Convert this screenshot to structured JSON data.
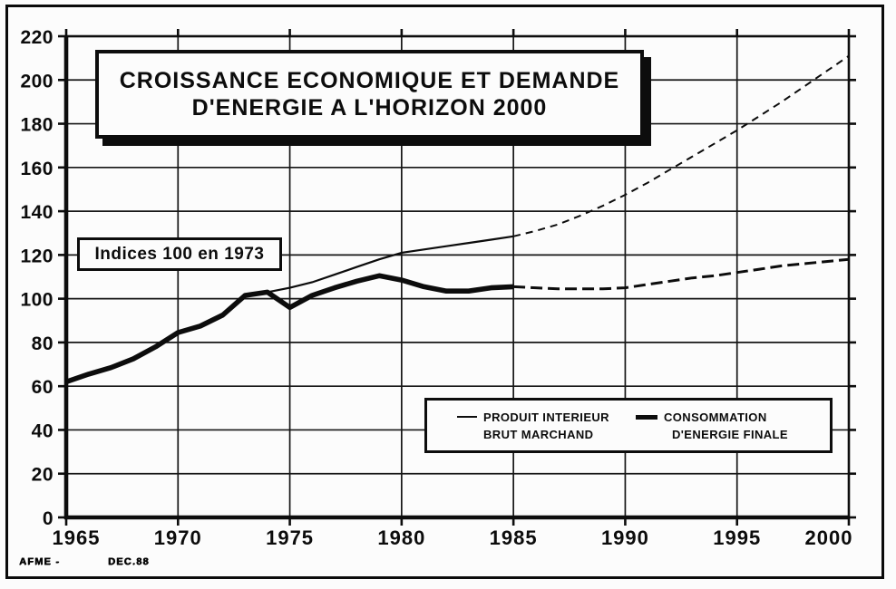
{
  "colors": {
    "ink": "#0c0c0c",
    "paper": "#fcfcfc"
  },
  "footer": {
    "source": "AFME -",
    "date": "DEC.88"
  },
  "chart_data": {
    "type": "line",
    "title": "CROISSANCE ECONOMIQUE ET DEMANDE D'ENERGIE A L'HORIZON 2000",
    "title_lines": [
      "CROISSANCE ECONOMIQUE ET DEMANDE",
      "D'ENERGIE A L'HORIZON 2000"
    ],
    "annotation": "Indices 100 en 1973",
    "xlim": [
      1965,
      2000
    ],
    "ylim": [
      0,
      220
    ],
    "x_ticks": [
      1965,
      1970,
      1975,
      1980,
      1985,
      1990,
      1995,
      2000
    ],
    "y_ticks": [
      0,
      20,
      40,
      60,
      80,
      100,
      120,
      140,
      160,
      180,
      200,
      220
    ],
    "grid": true,
    "dashed_segments_note": "pointillés = projection après 1985",
    "legend": {
      "position": "inside-bottom-right",
      "items": [
        {
          "name": "PRODUIT INTERIEUR BRUT MARCHAND",
          "marker": "thin-line",
          "lines": [
            "PRODUIT INTERIEUR",
            "BRUT MARCHAND"
          ]
        },
        {
          "name": "CONSOMMATION D'ENERGIE FINALE",
          "marker": "thick-line",
          "lines": [
            "CONSOMMATION",
            "D'ENERGIE FINALE"
          ]
        }
      ]
    },
    "series": [
      {
        "name": "PRODUIT INTERIEUR BRUT MARCHAND",
        "line_weight": "thin",
        "segments": [
          {
            "style": "solid",
            "years": [
              1965,
              1966,
              1967,
              1968,
              1969,
              1970,
              1971,
              1972,
              1973,
              1974,
              1975,
              1976,
              1977,
              1978,
              1979,
              1980,
              1981,
              1982,
              1983,
              1984,
              1985
            ],
            "values": [
              62,
              66,
              69,
              73,
              78,
              84.5,
              88,
              93,
              101.5,
              103,
              105,
              107.5,
              111,
              114.5,
              118,
              121,
              122.5,
              124,
              125.5,
              127,
              128.5
            ]
          },
          {
            "style": "dashed",
            "years": [
              1985,
              1986,
              1987,
              1988,
              1989,
              1990,
              1991,
              1992,
              1993,
              1994,
              1995,
              1996,
              1997,
              1998,
              1999,
              2000
            ],
            "values": [
              128.5,
              131,
              134,
              138,
              142.5,
              147.5,
              153,
              159,
              165,
              171,
              177,
              183.5,
              190,
              197,
              204,
              211
            ]
          }
        ]
      },
      {
        "name": "CONSOMMATION D'ENERGIE FINALE",
        "line_weight": "thick",
        "segments": [
          {
            "style": "solid",
            "years": [
              1965,
              1966,
              1967,
              1968,
              1969,
              1970,
              1971,
              1972,
              1973,
              1974,
              1975,
              1976,
              1977,
              1978,
              1979,
              1980,
              1981,
              1982,
              1983,
              1984,
              1985
            ],
            "values": [
              62,
              65.5,
              68.5,
              72.5,
              78,
              84.5,
              87.5,
              92.5,
              101.5,
              103,
              96,
              101.5,
              105,
              108,
              110.5,
              108.5,
              105.5,
              103.5,
              103.5,
              105,
              105.5
            ]
          },
          {
            "style": "dashed",
            "years": [
              1985,
              1986,
              1987,
              1988,
              1989,
              1990,
              1991,
              1992,
              1993,
              1994,
              1995,
              1996,
              1997,
              1998,
              1999,
              2000
            ],
            "values": [
              105.5,
              105,
              104.5,
              104.5,
              104.5,
              105,
              106.5,
              108,
              109.5,
              110.5,
              112,
              113.5,
              115,
              116,
              117,
              118
            ]
          }
        ]
      }
    ]
  }
}
